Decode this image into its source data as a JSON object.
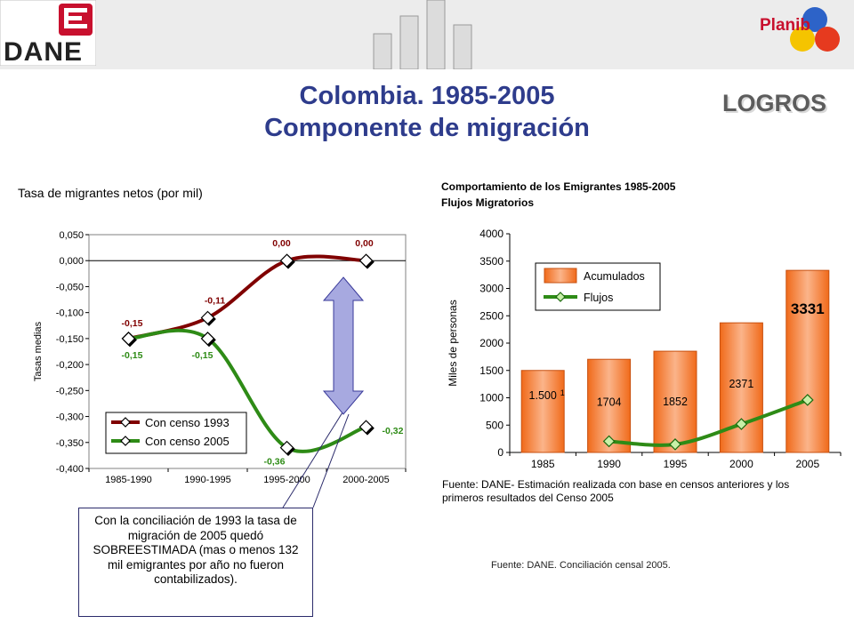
{
  "header": {
    "logo_text": "DANE",
    "plan_text": "Planib"
  },
  "slide": {
    "title_line1": "Colombia. 1985-2005",
    "title_line2": "Componente de migración",
    "badge": "LOGROS",
    "callout": "Con la conciliación de 1993 la tasa de migración de 2005 quedó SOBREESTIMADA (mas o menos 132 mil emigrantes por año no fueron contabilizados).",
    "source_bottom": "Fuente: DANE.  Conciliación censal 2005."
  },
  "colors": {
    "title": "#2e3c8c",
    "series_1993": "#800000",
    "series_2005": "#2e8b16",
    "bar_orange": "#f07830",
    "arrow_fill": "#a7a9e0"
  },
  "chart_data": [
    {
      "type": "line",
      "title": "Tasa de migrantes netos (por mil)",
      "xlabel": "",
      "ylabel": "Tasas medias",
      "categories": [
        "1985-1990",
        "1990-1995",
        "1995-2000",
        "2000-2005"
      ],
      "ylim": [
        -0.4,
        0.05
      ],
      "yticks": [
        "0,050",
        "0,000",
        "-0,050",
        "-0,100",
        "-0,150",
        "-0,200",
        "-0,250",
        "-0,300",
        "-0,350",
        "-0,400"
      ],
      "series": [
        {
          "name": "Con censo 1993",
          "values": [
            -0.15,
            -0.11,
            0.0,
            0.0
          ],
          "labels": [
            "-0,15",
            "-0,11",
            "0,00",
            "0,00"
          ]
        },
        {
          "name": "Con censo 2005",
          "values": [
            -0.15,
            -0.15,
            -0.36,
            -0.32
          ],
          "labels": [
            "-0,15",
            "-0,15",
            "-0,36",
            "-0,32"
          ]
        }
      ],
      "legend": "bottom-inside",
      "grid": false
    },
    {
      "type": "bar",
      "title": "Comportamiento de los Emigrantes 1985-2005",
      "subtitle": "Flujos Migratorios",
      "xlabel": "",
      "ylabel": "Miles de personas",
      "categories": [
        "1985",
        "1990",
        "1995",
        "2000",
        "2005"
      ],
      "ylim": [
        0,
        4000
      ],
      "yticks": [
        "0",
        "500",
        "1000",
        "1500",
        "2000",
        "2500",
        "3000",
        "3500",
        "4000"
      ],
      "series": [
        {
          "name": "Acumulados",
          "type": "bar",
          "values": [
            1500,
            1704,
            1852,
            2371,
            3331
          ],
          "labels": [
            "1.500",
            "1704",
            "1852",
            "2371",
            "3331"
          ]
        },
        {
          "name": "Flujos",
          "type": "line",
          "values": [
            null,
            204,
            148,
            519,
            960
          ]
        }
      ],
      "label_superscript": "1",
      "legend": "top-left",
      "grid": false,
      "source": "Fuente: DANE- Estimación realizada con base en censos anteriores y los primeros resultados del Censo 2005"
    }
  ]
}
